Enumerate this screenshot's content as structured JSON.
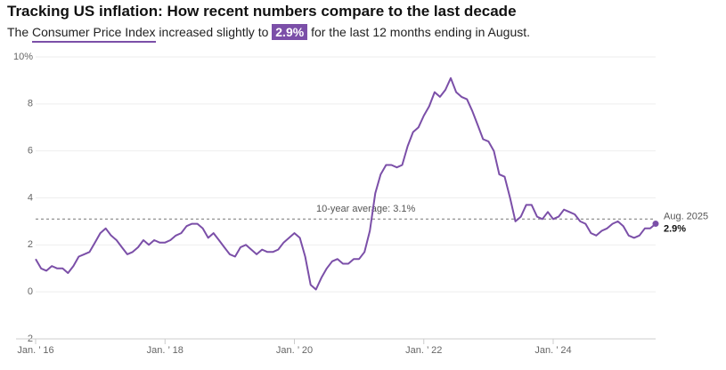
{
  "chart_data": {
    "type": "line",
    "title": "Tracking US inflation: How recent numbers compare to the last decade",
    "subtitle": [
      "The ",
      "Consumer Price Index",
      " increased slightly to ",
      "2.9%",
      " for the last 12 months ending in August."
    ],
    "color": "#7b4fa8",
    "x": [
      "2016-01",
      "2016-02",
      "2016-03",
      "2016-04",
      "2016-05",
      "2016-06",
      "2016-07",
      "2016-08",
      "2016-09",
      "2016-10",
      "2016-11",
      "2016-12",
      "2017-01",
      "2017-02",
      "2017-03",
      "2017-04",
      "2017-05",
      "2017-06",
      "2017-07",
      "2017-08",
      "2017-09",
      "2017-10",
      "2017-11",
      "2017-12",
      "2018-01",
      "2018-02",
      "2018-03",
      "2018-04",
      "2018-05",
      "2018-06",
      "2018-07",
      "2018-08",
      "2018-09",
      "2018-10",
      "2018-11",
      "2018-12",
      "2019-01",
      "2019-02",
      "2019-03",
      "2019-04",
      "2019-05",
      "2019-06",
      "2019-07",
      "2019-08",
      "2019-09",
      "2019-10",
      "2019-11",
      "2019-12",
      "2020-01",
      "2020-02",
      "2020-03",
      "2020-04",
      "2020-05",
      "2020-06",
      "2020-07",
      "2020-08",
      "2020-09",
      "2020-10",
      "2020-11",
      "2020-12",
      "2021-01",
      "2021-02",
      "2021-03",
      "2021-04",
      "2021-05",
      "2021-06",
      "2021-07",
      "2021-08",
      "2021-09",
      "2021-10",
      "2021-11",
      "2021-12",
      "2022-01",
      "2022-02",
      "2022-03",
      "2022-04",
      "2022-05",
      "2022-06",
      "2022-07",
      "2022-08",
      "2022-09",
      "2022-10",
      "2022-11",
      "2022-12",
      "2023-01",
      "2023-02",
      "2023-03",
      "2023-04",
      "2023-05",
      "2023-06",
      "2023-07",
      "2023-08",
      "2023-09",
      "2023-10",
      "2023-11",
      "2023-12",
      "2024-01",
      "2024-02",
      "2024-03",
      "2024-04",
      "2024-05",
      "2024-06",
      "2024-07",
      "2024-08",
      "2024-09",
      "2024-10",
      "2024-11",
      "2024-12",
      "2025-01",
      "2025-02",
      "2025-03",
      "2025-04",
      "2025-05",
      "2025-06",
      "2025-07",
      "2025-08"
    ],
    "values": [
      1.4,
      1.0,
      0.9,
      1.1,
      1.0,
      1.0,
      0.8,
      1.1,
      1.5,
      1.6,
      1.7,
      2.1,
      2.5,
      2.7,
      2.4,
      2.2,
      1.9,
      1.6,
      1.7,
      1.9,
      2.2,
      2.0,
      2.2,
      2.1,
      2.1,
      2.2,
      2.4,
      2.5,
      2.8,
      2.9,
      2.9,
      2.7,
      2.3,
      2.5,
      2.2,
      1.9,
      1.6,
      1.5,
      1.9,
      2.0,
      1.8,
      1.6,
      1.8,
      1.7,
      1.7,
      1.8,
      2.1,
      2.3,
      2.5,
      2.3,
      1.5,
      0.3,
      0.1,
      0.6,
      1.0,
      1.3,
      1.4,
      1.2,
      1.2,
      1.4,
      1.4,
      1.7,
      2.6,
      4.2,
      5.0,
      5.4,
      5.4,
      5.3,
      5.4,
      6.2,
      6.8,
      7.0,
      7.5,
      7.9,
      8.5,
      8.3,
      8.6,
      9.1,
      8.5,
      8.3,
      8.2,
      7.7,
      7.1,
      6.5,
      6.4,
      6.0,
      5.0,
      4.9,
      4.0,
      3.0,
      3.2,
      3.7,
      3.7,
      3.2,
      3.1,
      3.4,
      3.1,
      3.2,
      3.5,
      3.4,
      3.3,
      3.0,
      2.9,
      2.5,
      2.4,
      2.6,
      2.7,
      2.9,
      3.0,
      2.8,
      2.4,
      2.3,
      2.4,
      2.7,
      2.7,
      2.9
    ],
    "xlim": [
      "2016-01",
      "2025-08"
    ],
    "xticks": [
      {
        "value": "2016-01",
        "label": "Jan. ’ 16"
      },
      {
        "value": "2018-01",
        "label": "Jan. ’ 18"
      },
      {
        "value": "2020-01",
        "label": "Jan. ’ 20"
      },
      {
        "value": "2022-01",
        "label": "Jan. ’ 22"
      },
      {
        "value": "2024-01",
        "label": "Jan. ’ 24"
      }
    ],
    "ylim": [
      -2,
      10
    ],
    "yticks": [
      -2,
      0,
      2,
      4,
      6,
      8,
      {
        "value": 10,
        "label": "10%"
      }
    ],
    "grid": true,
    "average": {
      "value": 3.1,
      "label": "10-year average: 3.1%"
    },
    "end_label": "Aug. 2025",
    "end_value_label": "2.9%"
  }
}
